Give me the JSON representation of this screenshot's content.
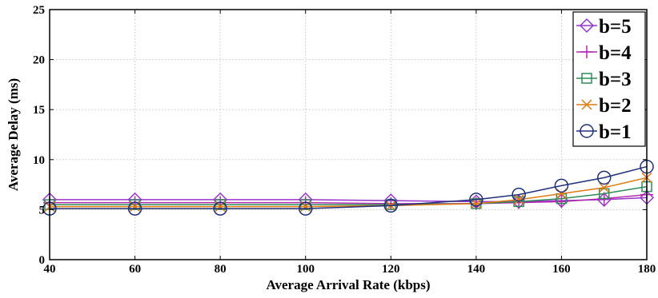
{
  "chart_data": {
    "type": "line",
    "title": "",
    "xlabel": "Average Arrival Rate (kbps)",
    "ylabel": "Average Delay (ms)",
    "xlim": [
      40,
      180
    ],
    "ylim": [
      0,
      25
    ],
    "xticks": [
      40,
      60,
      80,
      100,
      120,
      140,
      160,
      180
    ],
    "yticks": [
      0,
      5,
      10,
      15,
      20,
      25
    ],
    "grid": true,
    "legend_position": "top-right",
    "x": [
      40,
      60,
      80,
      100,
      120,
      140,
      150,
      160,
      170,
      180
    ],
    "series": [
      {
        "name": "b=5",
        "color": "#9933cc",
        "marker": "diamond",
        "values": [
          6.0,
          6.0,
          6.0,
          6.0,
          5.9,
          5.8,
          5.8,
          5.9,
          6.0,
          6.2
        ]
      },
      {
        "name": "b=4",
        "color": "#b02ab0",
        "marker": "plus",
        "values": [
          5.7,
          5.7,
          5.7,
          5.7,
          5.6,
          5.6,
          5.7,
          5.8,
          6.1,
          6.5
        ]
      },
      {
        "name": "b=3",
        "color": "#2e8b57",
        "marker": "square",
        "values": [
          5.5,
          5.5,
          5.5,
          5.5,
          5.5,
          5.6,
          5.8,
          6.1,
          6.6,
          7.3
        ]
      },
      {
        "name": "b=2",
        "color": "#e07a10",
        "marker": "x",
        "values": [
          5.3,
          5.3,
          5.3,
          5.3,
          5.4,
          5.6,
          6.0,
          6.6,
          7.2,
          8.2
        ]
      },
      {
        "name": "b=1",
        "color": "#1f2f7a",
        "marker": "circle",
        "values": [
          5.1,
          5.1,
          5.1,
          5.1,
          5.4,
          6.0,
          6.5,
          7.4,
          8.2,
          9.3
        ]
      }
    ]
  }
}
